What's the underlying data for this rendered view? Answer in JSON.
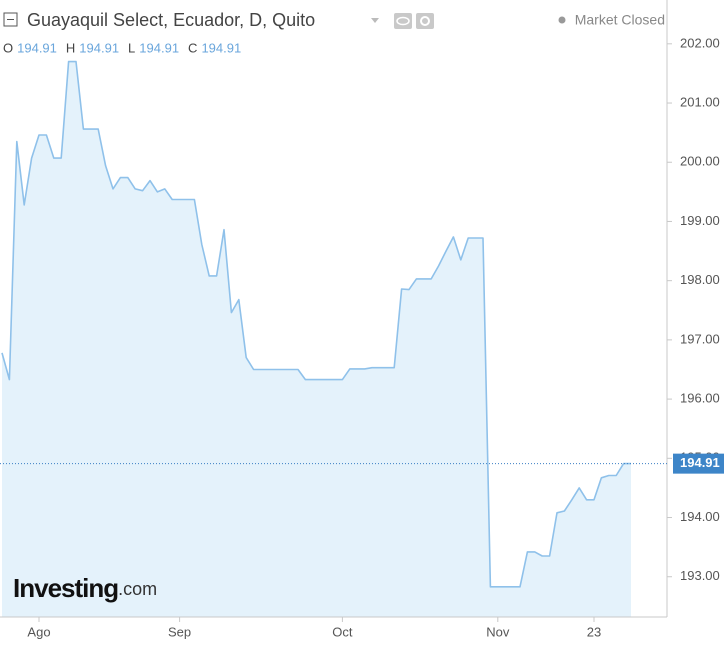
{
  "chart_data": {
    "type": "area",
    "title": "Guayaquil Select, Ecuador, D, Quito",
    "status": "Market Closed",
    "ohlc": [
      {
        "label": "O",
        "value": 194.91
      },
      {
        "label": "H",
        "value": 194.91
      },
      {
        "label": "L",
        "value": 194.91
      },
      {
        "label": "C",
        "value": 194.91
      }
    ],
    "watermark": {
      "brand": "Investing",
      "suffix": ".com"
    },
    "color": "#8fc1ea",
    "fill": "#e4f2fb",
    "categories": [
      null,
      null,
      null,
      null,
      null,
      "Ago",
      null,
      null,
      null,
      null,
      null,
      null,
      null,
      null,
      null,
      null,
      null,
      null,
      null,
      null,
      null,
      null,
      null,
      null,
      "Sep",
      null,
      null,
      null,
      null,
      null,
      null,
      null,
      null,
      null,
      null,
      null,
      null,
      null,
      null,
      null,
      null,
      null,
      null,
      null,
      null,
      null,
      "Oct",
      null,
      null,
      null,
      null,
      null,
      null,
      null,
      null,
      null,
      null,
      null,
      null,
      null,
      null,
      null,
      null,
      null,
      null,
      null,
      null,
      "Nov",
      null,
      null,
      null,
      null,
      null,
      null,
      null,
      null,
      null,
      null,
      null,
      null,
      "23",
      null,
      null,
      null,
      null,
      null
    ],
    "values": [
      196.78,
      196.33,
      200.35,
      199.28,
      200.07,
      200.46,
      200.46,
      200.07,
      200.07,
      201.7,
      201.7,
      200.56,
      200.56,
      200.56,
      199.94,
      199.55,
      199.74,
      199.74,
      199.55,
      199.52,
      199.69,
      199.5,
      199.55,
      199.37,
      199.37,
      199.37,
      199.37,
      198.61,
      198.08,
      198.08,
      198.86,
      197.46,
      197.68,
      196.7,
      196.5,
      196.5,
      196.5,
      196.5,
      196.5,
      196.5,
      196.5,
      196.33,
      196.33,
      196.33,
      196.33,
      196.33,
      196.33,
      196.51,
      196.51,
      196.51,
      196.53,
      196.53,
      196.53,
      196.53,
      197.86,
      197.85,
      198.03,
      198.03,
      198.03,
      198.25,
      198.5,
      198.74,
      198.35,
      198.72,
      198.72,
      198.72,
      192.83,
      192.83,
      192.83,
      192.83,
      192.83,
      193.42,
      193.42,
      193.35,
      193.35,
      194.08,
      194.11,
      194.3,
      194.5,
      194.3,
      194.3,
      194.67,
      194.71,
      194.71,
      194.91,
      194.91
    ],
    "ylim": [
      192.32,
      202.74
    ],
    "yticks": [
      {
        "value": 193,
        "label": "193.00"
      },
      {
        "value": 194,
        "label": "194.00"
      },
      {
        "value": 195,
        "label": "195.00"
      },
      {
        "value": 196,
        "label": "196.00"
      },
      {
        "value": 197,
        "label": "197.00"
      },
      {
        "value": 198,
        "label": "198.00"
      },
      {
        "value": 199,
        "label": "199.00"
      },
      {
        "value": 200,
        "label": "200.00"
      },
      {
        "value": 201,
        "label": "201.00"
      },
      {
        "value": 202,
        "label": "202.00"
      }
    ],
    "price_line": true
  }
}
